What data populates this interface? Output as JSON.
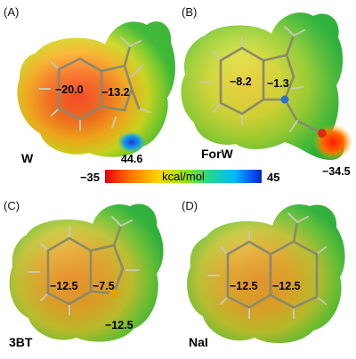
{
  "panels": [
    {
      "id": "A",
      "label": "(A)",
      "molecule": "W",
      "values": [
        "-20.0",
        "-13.2",
        "44.6"
      ]
    },
    {
      "id": "B",
      "label": "(B)",
      "molecule": "ForW",
      "values": [
        "-8.2",
        "-1.3",
        "-34.5"
      ]
    },
    {
      "id": "C",
      "label": "(C)",
      "molecule": "3BT",
      "values": [
        "-12.5",
        "-7.5",
        "-12.5"
      ]
    },
    {
      "id": "D",
      "label": "(D)",
      "molecule": "NaI",
      "values": [
        "-12.5",
        "-12.5"
      ]
    }
  ],
  "colorbar": {
    "min": "-35",
    "max": "45",
    "unit": "kcal/mol",
    "colors": [
      "#e8000c",
      "#ff7a00",
      "#ffd400",
      "#9ce800",
      "#27d889",
      "#00b6ff",
      "#0022d8"
    ]
  }
}
